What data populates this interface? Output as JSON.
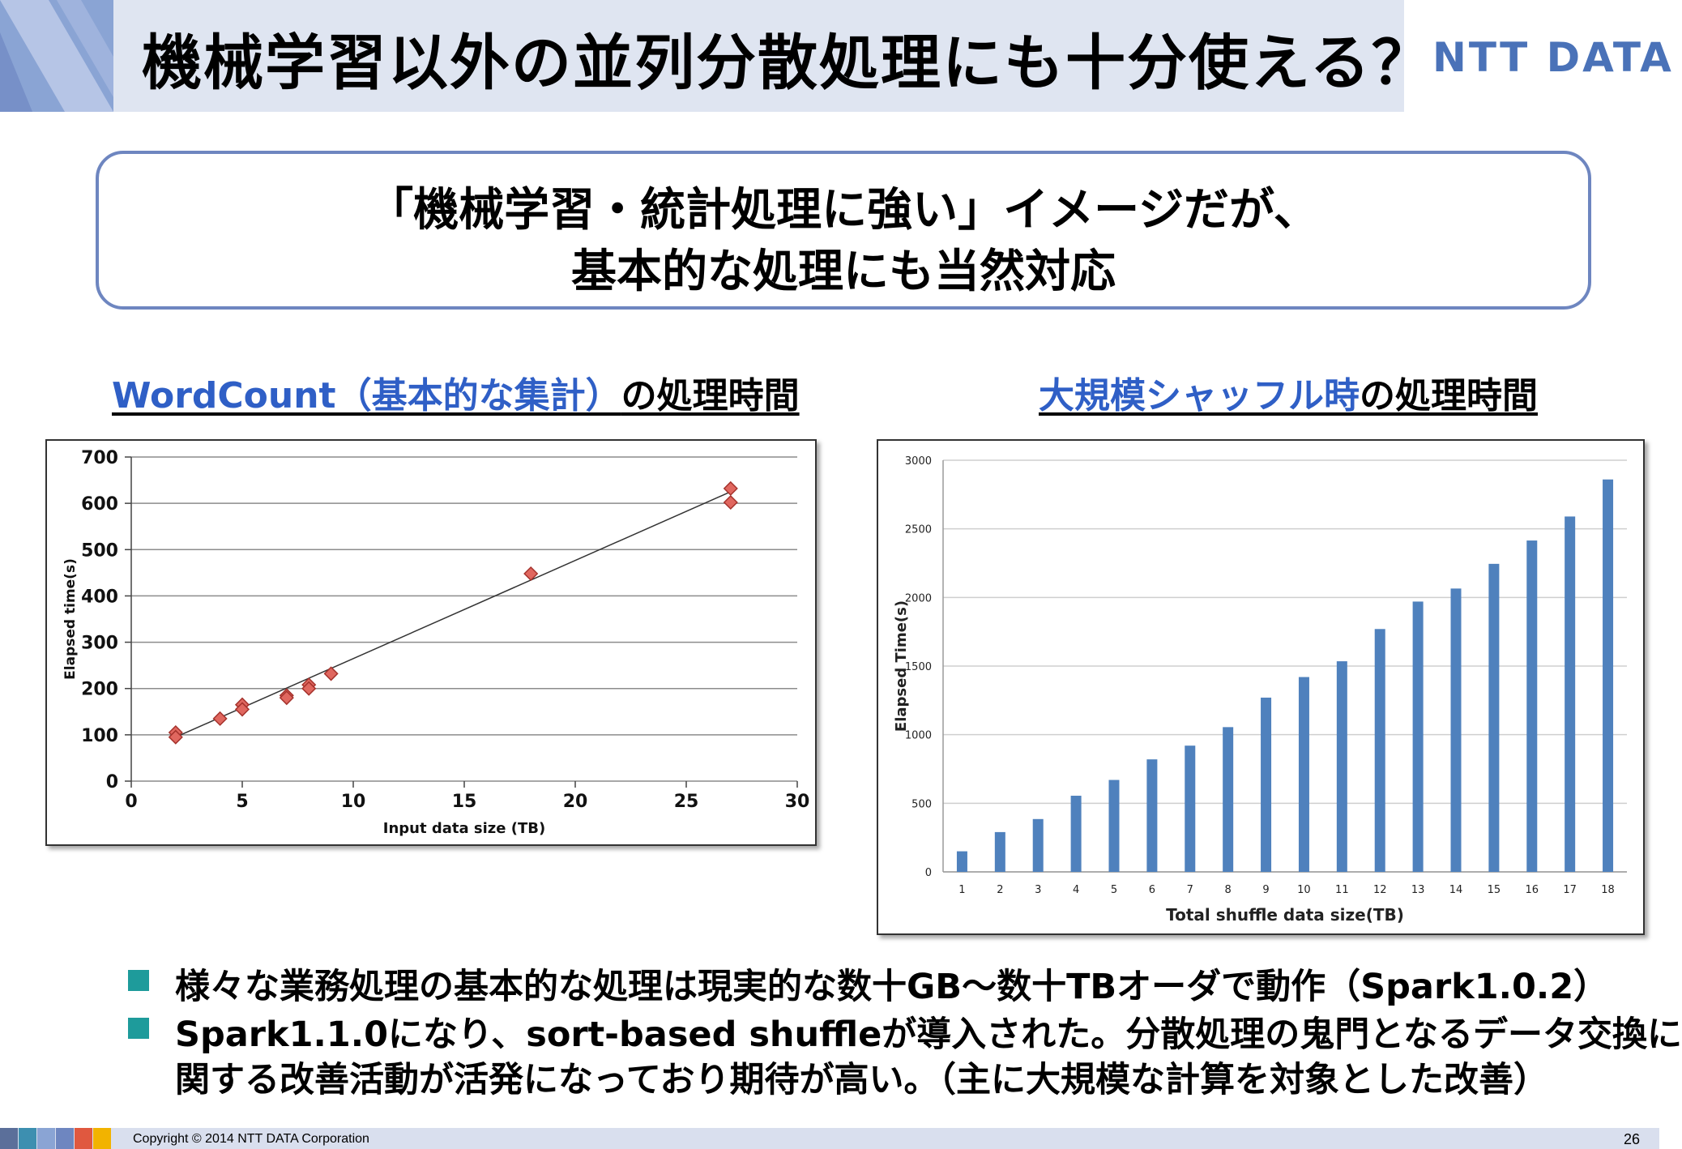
{
  "header": {
    "title": "機械学習以外の並列分散処理にも十分使える？",
    "logo": "NTT DATA"
  },
  "callout": {
    "line1": "「機械学習・統計処理に強い」イメージだが、",
    "line2": "基本的な処理にも当然対応"
  },
  "left_chart_title": {
    "blue": "WordCount（基本的な集計）",
    "black": "の処理時間"
  },
  "right_chart_title": {
    "blue": "大規模シャッフル時",
    "black": "の処理時間"
  },
  "chart_data": [
    {
      "type": "scatter",
      "xlabel": "Input data size (TB)",
      "ylabel": "Elapsed time(s)",
      "xlim": [
        0,
        30
      ],
      "ylim": [
        0,
        700
      ],
      "x_ticks": [
        0,
        5,
        10,
        15,
        20,
        25,
        30
      ],
      "y_ticks": [
        0,
        100,
        200,
        300,
        400,
        500,
        600,
        700
      ],
      "grid": true,
      "points": [
        {
          "x": 2,
          "y": 105
        },
        {
          "x": 2,
          "y": 95
        },
        {
          "x": 4,
          "y": 135
        },
        {
          "x": 5,
          "y": 165
        },
        {
          "x": 5,
          "y": 155
        },
        {
          "x": 7,
          "y": 185
        },
        {
          "x": 7,
          "y": 180
        },
        {
          "x": 8,
          "y": 208
        },
        {
          "x": 8,
          "y": 200
        },
        {
          "x": 9,
          "y": 232
        },
        {
          "x": 18,
          "y": 448
        },
        {
          "x": 27,
          "y": 632
        },
        {
          "x": 27,
          "y": 602
        }
      ],
      "trendline": [
        {
          "x": 2,
          "y": 95
        },
        {
          "x": 27,
          "y": 625
        }
      ],
      "marker_color": "#e0675f"
    },
    {
      "type": "bar",
      "xlabel": "Total shuffle data size(TB)",
      "ylabel": "Elapsed Time(s)",
      "ylim": [
        0,
        3000
      ],
      "y_ticks": [
        0,
        500,
        1000,
        1500,
        2000,
        2500,
        3000
      ],
      "grid": true,
      "categories": [
        "1",
        "2",
        "3",
        "4",
        "5",
        "6",
        "7",
        "8",
        "9",
        "10",
        "11",
        "12",
        "13",
        "14",
        "15",
        "16",
        "17",
        "18"
      ],
      "values": [
        150,
        290,
        385,
        555,
        670,
        820,
        920,
        1055,
        1270,
        1420,
        1535,
        1770,
        1970,
        2065,
        2245,
        2415,
        2590,
        2860
      ],
      "bar_color": "#4f81bd"
    }
  ],
  "bullets": [
    {
      "text": "様々な業務処理の基本的な処理は現実的な数十GB～数十TBオーダで動作（Spark1.0.2）"
    },
    {
      "line1": "Spark1.1.0になり、sort-based shuffleが導入された。分散処理の鬼門となるデータ交換に",
      "line2": "関する改善活動が活発になっており期待が高い。（主に大規模な計算を対象とした改善）"
    }
  ],
  "footer": {
    "copyright": "Copyright © 2014 NTT DATA Corporation",
    "page": "26",
    "squares": [
      "#5b6f9a",
      "#3d8fb0",
      "#8aa4d4",
      "#6e86c0",
      "#e0583f",
      "#f2b300"
    ]
  }
}
